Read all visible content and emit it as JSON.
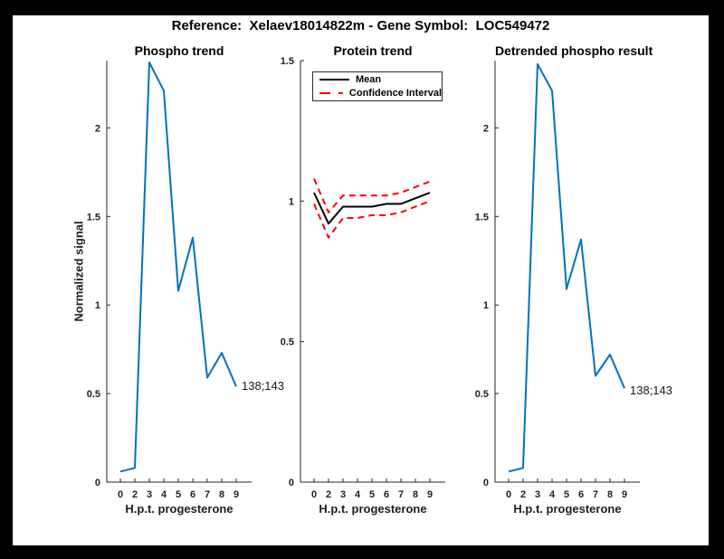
{
  "figure": {
    "title": "Reference:  Xelaev18014822m - Gene Symbol:  LOC549472",
    "background": "#ffffff",
    "frame_color": "#000000"
  },
  "colors": {
    "line_blue": "#0072BD",
    "ci_red": "#FF0000",
    "mean_black": "#000000",
    "axis": "#262626"
  },
  "chart_data": [
    {
      "type": "line",
      "title": "Phospho trend",
      "xlabel": "H.p.t. progesterone",
      "ylabel": "Normalized signal",
      "x_tick_labels": [
        "0",
        "2",
        "3",
        "4",
        "5",
        "6",
        "7",
        "8",
        "9"
      ],
      "x": [
        0,
        2,
        3,
        4,
        5,
        6,
        7,
        8,
        9
      ],
      "x_spacing": "even-index",
      "ylim": [
        0,
        2.38
      ],
      "y_ticks": [
        0,
        0.5,
        1,
        1.5,
        2
      ],
      "grid": false,
      "series": [
        {
          "name": "phospho-signal",
          "color": "#0072BD",
          "dash": "solid",
          "values": [
            0.06,
            0.08,
            2.37,
            2.21,
            1.08,
            1.38,
            0.59,
            0.73,
            0.54
          ]
        }
      ],
      "annotation": "138;143"
    },
    {
      "type": "line",
      "title": "Protein trend",
      "xlabel": "H.p.t. progesterone",
      "ylabel": "",
      "x_tick_labels": [
        "0",
        "2",
        "3",
        "4",
        "5",
        "6",
        "7",
        "8",
        "9"
      ],
      "x": [
        0,
        2,
        3,
        4,
        5,
        6,
        7,
        8,
        9
      ],
      "x_spacing": "even-index",
      "ylim": [
        0,
        1.5
      ],
      "y_ticks": [
        0,
        0.5,
        1,
        1.5
      ],
      "grid": false,
      "series": [
        {
          "name": "mean",
          "color": "#000000",
          "dash": "solid",
          "values": [
            1.03,
            0.92,
            0.98,
            0.98,
            0.98,
            0.99,
            0.99,
            1.01,
            1.03
          ]
        },
        {
          "name": "ci-upper",
          "color": "#FF0000",
          "dash": "dashed",
          "values": [
            1.08,
            0.96,
            1.02,
            1.02,
            1.02,
            1.02,
            1.03,
            1.05,
            1.07
          ]
        },
        {
          "name": "ci-lower",
          "color": "#FF0000",
          "dash": "dashed",
          "values": [
            0.99,
            0.87,
            0.94,
            0.94,
            0.95,
            0.95,
            0.96,
            0.98,
            1.0
          ]
        }
      ],
      "legend": {
        "position": "north",
        "entries": [
          {
            "label": "Mean",
            "color": "#000000",
            "dash": "solid"
          },
          {
            "label": "Confidence Interval",
            "color": "#FF0000",
            "dash": "dashed"
          }
        ]
      },
      "annotation": null
    },
    {
      "type": "line",
      "title": "Detrended phospho result",
      "xlabel": "H.p.t. progesterone",
      "ylabel": "",
      "x_tick_labels": [
        "0",
        "2",
        "3",
        "4",
        "5",
        "6",
        "7",
        "8",
        "9"
      ],
      "x": [
        0,
        2,
        3,
        4,
        5,
        6,
        7,
        8,
        9
      ],
      "x_spacing": "even-index",
      "ylim": [
        0,
        2.38
      ],
      "y_ticks": [
        0,
        0.5,
        1,
        1.5,
        2
      ],
      "grid": false,
      "series": [
        {
          "name": "detrended-phospho-signal",
          "color": "#0072BD",
          "dash": "solid",
          "values": [
            0.06,
            0.08,
            2.36,
            2.21,
            1.09,
            1.37,
            0.6,
            0.72,
            0.53
          ]
        }
      ],
      "annotation": "138;143"
    }
  ]
}
